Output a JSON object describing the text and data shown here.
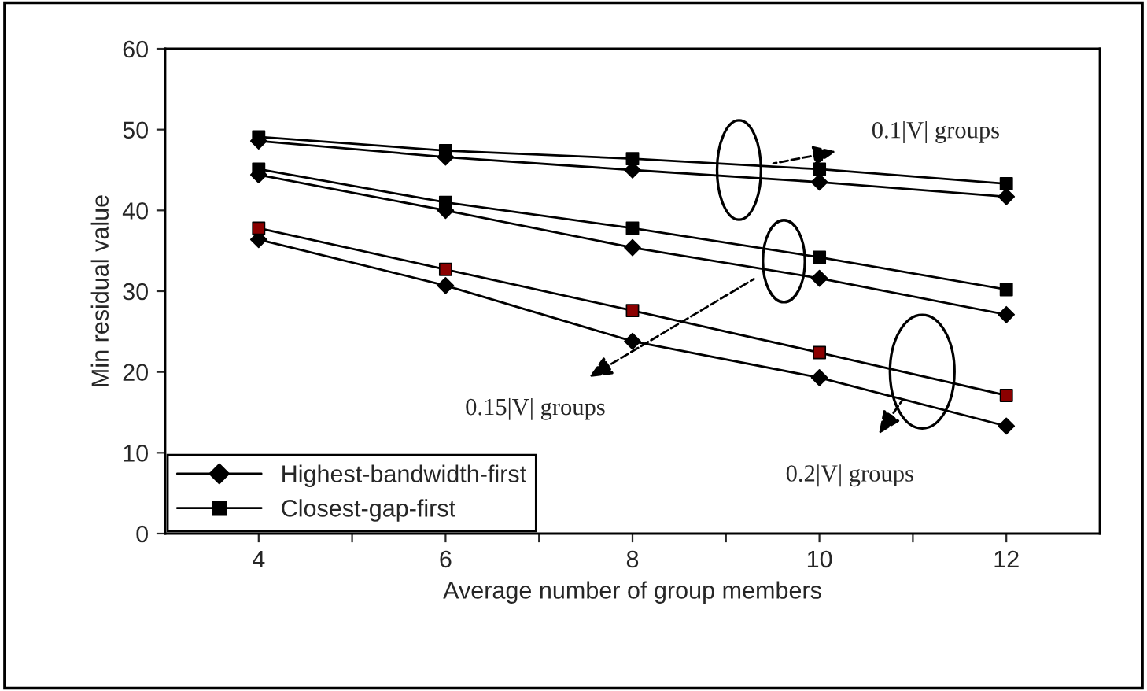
{
  "chart_data": {
    "type": "line",
    "xlabel": "Average number of group members",
    "ylabel": "Min residual value",
    "x": [
      4,
      6,
      8,
      10,
      12
    ],
    "series": [
      {
        "name": "Highest-bandwidth-first",
        "color": "#000000",
        "marker": "diamond",
        "values": [
          48.6,
          46.6,
          45.0,
          43.5,
          41.7
        ]
      },
      {
        "name": "Closest-gap-first",
        "color": "#000000",
        "marker": "square",
        "values": [
          49.1,
          47.4,
          46.4,
          45.1,
          43.3
        ]
      },
      {
        "color": "#000000",
        "marker": "diamond",
        "values": [
          44.4,
          40.0,
          35.4,
          31.6,
          27.1
        ]
      },
      {
        "color": "#000000",
        "marker": "square",
        "values": [
          45.1,
          41.0,
          37.8,
          34.2,
          30.2
        ]
      },
      {
        "color": "#000000",
        "marker": "diamond",
        "values": [
          36.4,
          30.7,
          23.8,
          19.3,
          13.3
        ]
      },
      {
        "color": "#000000",
        "colors": [
          "#8b0000",
          "#8b0000",
          "#8b0000",
          "#8b0000",
          "#8b0000"
        ],
        "marker": "square",
        "values": [
          37.8,
          32.7,
          27.6,
          22.4,
          17.1
        ]
      }
    ],
    "annotations": [
      "0.1|V| groups",
      "0.15|V| groups",
      "0.2|V| groups"
    ],
    "xlim": [
      3,
      13
    ],
    "xticks": [
      {
        "value": 5,
        "label": null
      },
      4,
      6,
      {
        "value": 7,
        "label": null
      },
      8,
      {
        "value": 9,
        "label": null
      },
      10,
      {
        "value": 11,
        "label": null
      },
      12
    ],
    "ylim": [
      0,
      60
    ],
    "yticks": [
      0,
      10,
      20,
      30,
      40,
      50,
      60
    ],
    "grid": false,
    "legend": "bottom left",
    "line_style": "solid"
  }
}
